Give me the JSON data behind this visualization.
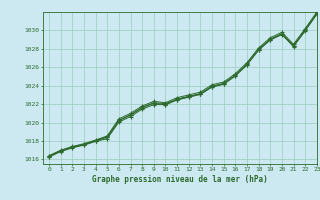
{
  "title": "Graphe pression niveau de la mer (hPa)",
  "xlim": [
    -0.5,
    23
  ],
  "ylim": [
    1015.5,
    1032.0
  ],
  "yticks": [
    1016,
    1018,
    1020,
    1022,
    1024,
    1026,
    1028,
    1030
  ],
  "xticks": [
    0,
    1,
    2,
    3,
    4,
    5,
    6,
    7,
    8,
    9,
    10,
    11,
    12,
    13,
    14,
    15,
    16,
    17,
    18,
    19,
    20,
    21,
    22,
    23
  ],
  "bg_color": "#cce8f0",
  "grid_color": "#99ccbb",
  "line_color": "#2d6a2d",
  "series1": [
    1016.3,
    1016.9,
    1017.3,
    1017.6,
    1018.0,
    1018.4,
    1020.2,
    1020.8,
    1021.6,
    1022.1,
    1021.9,
    1022.5,
    1022.8,
    1023.1,
    1023.9,
    1024.2,
    1025.1,
    1026.3,
    1027.9,
    1029.0,
    1029.6,
    1028.3,
    1030.0,
    1031.8
  ],
  "series2": [
    1016.25,
    1016.85,
    1017.25,
    1017.55,
    1017.95,
    1018.25,
    1020.05,
    1020.65,
    1021.45,
    1021.95,
    1021.95,
    1022.45,
    1022.75,
    1023.05,
    1023.85,
    1024.15,
    1025.05,
    1026.25,
    1027.85,
    1028.95,
    1029.55,
    1028.25,
    1029.95,
    1031.75
  ],
  "series3": [
    1016.35,
    1016.95,
    1017.35,
    1017.65,
    1018.05,
    1018.45,
    1020.25,
    1020.85,
    1021.65,
    1022.15,
    1022.05,
    1022.55,
    1022.85,
    1023.15,
    1023.95,
    1024.25,
    1025.15,
    1026.35,
    1027.95,
    1029.05,
    1029.65,
    1028.35,
    1030.05,
    1031.85
  ],
  "series4": [
    1016.4,
    1017.0,
    1017.4,
    1017.7,
    1018.1,
    1018.55,
    1020.4,
    1021.0,
    1021.8,
    1022.3,
    1022.15,
    1022.7,
    1023.0,
    1023.3,
    1024.1,
    1024.4,
    1025.3,
    1026.5,
    1028.1,
    1029.2,
    1029.8,
    1028.5,
    1030.2,
    1032.0
  ]
}
